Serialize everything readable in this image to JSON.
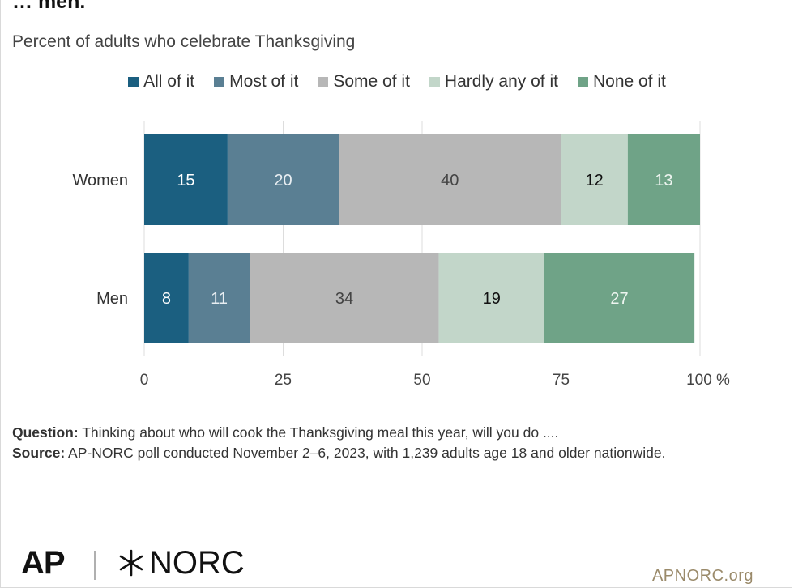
{
  "header": {
    "title": "… men.",
    "subtitle": "Percent of adults who celebrate Thanksgiving"
  },
  "legend": [
    {
      "label": "All of it",
      "color": "#1b5f80"
    },
    {
      "label": "Most of it",
      "color": "#5a7f93"
    },
    {
      "label": "Some of it",
      "color": "#b7b7b7"
    },
    {
      "label": "Hardly any of it",
      "color": "#c2d6c9"
    },
    {
      "label": "None of it",
      "color": "#6fa387"
    }
  ],
  "chart_data": {
    "type": "bar",
    "orientation": "horizontal",
    "stacked": true,
    "categories": [
      "Women",
      "Men"
    ],
    "series": [
      {
        "name": "All of it",
        "values": [
          15,
          8
        ],
        "color": "#1b5f80",
        "label_color": "#ffffff"
      },
      {
        "name": "Most of it",
        "values": [
          20,
          11
        ],
        "color": "#5a7f93",
        "label_color": "#e8eef2"
      },
      {
        "name": "Some of it",
        "values": [
          40,
          34
        ],
        "color": "#b7b7b7",
        "label_color": "#444444"
      },
      {
        "name": "Hardly any of it",
        "values": [
          12,
          19
        ],
        "color": "#c2d6c9",
        "label_color": "#111111"
      },
      {
        "name": "None of it",
        "values": [
          13,
          27
        ],
        "color": "#6fa387",
        "label_color": "#eef5f0"
      }
    ],
    "xlim": [
      0,
      100
    ],
    "xticks": [
      0,
      25,
      50,
      75,
      100
    ],
    "xtick_labels": [
      "0",
      "25",
      "50",
      "75",
      "100 %"
    ],
    "grid": true,
    "legend_position": "top"
  },
  "notes": {
    "question_label": "Question:",
    "question_text": " Thinking about who will cook the Thanksgiving meal this year, will you do ....",
    "source_label": "Source:",
    "source_text": " AP-NORC poll conducted November 2–6, 2023, with 1,239  adults age 18 and older nationwide."
  },
  "footer": {
    "logo_ap": "AP",
    "logo_norc": "NORC",
    "site": "APNORC.org"
  }
}
